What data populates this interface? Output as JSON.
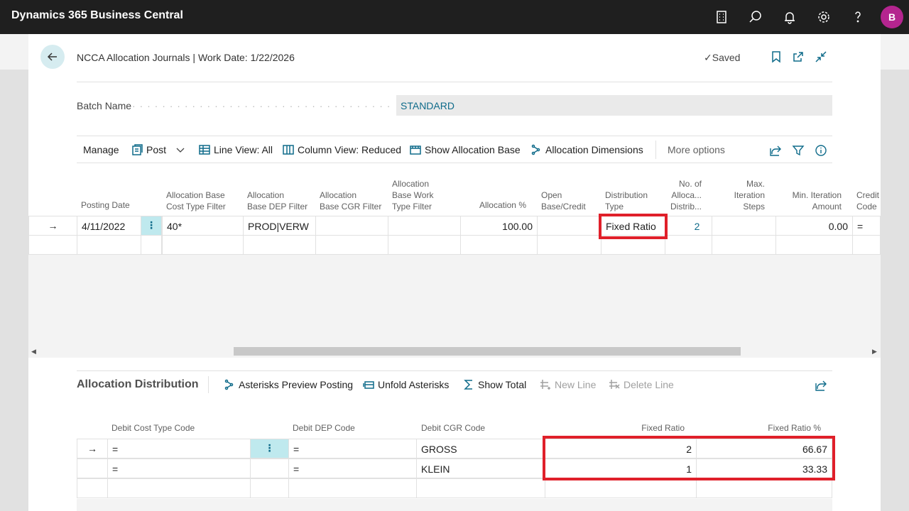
{
  "app": {
    "title": "Dynamics 365 Business Central",
    "avatar": "B"
  },
  "topbar_icons": [
    "building-icon",
    "search-icon",
    "bell-icon",
    "gear-icon",
    "help-icon"
  ],
  "page": {
    "title": "NCCA Allocation Journals | Work Date: 1/22/2026",
    "saved": "Saved"
  },
  "batch": {
    "label": "Batch Name",
    "value": "STANDARD"
  },
  "actions": {
    "manage": "Manage",
    "post": "Post",
    "line_view": "Line View: All",
    "column_view": "Column View: Reduced",
    "show_allocation_base": "Show Allocation Base",
    "allocation_dimensions": "Allocation Dimensions",
    "more_options": "More options"
  },
  "journal": {
    "headers": {
      "posting_date": "Posting Date",
      "alloc_base_cost_type_filter": [
        "Allocation Base",
        "Cost Type Filter"
      ],
      "alloc_base_dep_filter": [
        "Allocation",
        "Base DEP Filter"
      ],
      "alloc_base_cgr_filter": [
        "Allocation",
        "Base CGR Filter"
      ],
      "alloc_base_work_type_filter": [
        "Allocation",
        "Base Work",
        "Type Filter"
      ],
      "allocation_pct": "Allocation %",
      "open_base_credit": [
        "Open",
        "Base/Credit"
      ],
      "distribution_type": [
        "Distribution",
        "Type"
      ],
      "no_of_alloc_distrib": [
        "No. of",
        "Alloca...",
        "Distrib..."
      ],
      "max_iteration_steps": [
        "Max.",
        "Iteration",
        "Steps"
      ],
      "min_iteration_amount": [
        "Min. Iteration",
        "Amount"
      ],
      "credit_code": [
        "Credit",
        "Code"
      ]
    },
    "row": {
      "posting_date": "4/11/2022",
      "alloc_base_cost_type_filter": "40*",
      "alloc_base_dep_filter": "PROD|VERW",
      "alloc_base_cgr_filter": "",
      "alloc_base_work_type_filter": "",
      "allocation_pct": "100.00",
      "open_base_credit": "",
      "distribution_type": "Fixed Ratio",
      "no_of_alloc_distrib": "2",
      "max_iteration_steps": "",
      "min_iteration_amount": "0.00",
      "credit_code": "="
    }
  },
  "distribution": {
    "title": "Allocation Distribution",
    "actions": {
      "asterisks_preview": "Asterisks Preview Posting",
      "unfold_asterisks": "Unfold Asterisks",
      "show_total": "Show Total",
      "new_line": "New Line",
      "delete_line": "Delete Line"
    },
    "headers": {
      "debit_cost_type_code": "Debit Cost Type Code",
      "debit_dep_code": "Debit DEP Code",
      "debit_cgr_code": "Debit CGR Code",
      "fixed_ratio": "Fixed Ratio",
      "fixed_ratio_pct": "Fixed Ratio %"
    },
    "rows": [
      {
        "debit_cost_type_code": "=",
        "debit_dep_code": "=",
        "debit_cgr_code": "GROSS",
        "fixed_ratio": "2",
        "fixed_ratio_pct": "66.67"
      },
      {
        "debit_cost_type_code": "=",
        "debit_dep_code": "=",
        "debit_cgr_code": "KLEIN",
        "fixed_ratio": "1",
        "fixed_ratio_pct": "33.33"
      }
    ]
  },
  "colors": {
    "accent": "#0f6b8a",
    "highlight": "#e0202a",
    "topbar": "#1f1f1f"
  }
}
